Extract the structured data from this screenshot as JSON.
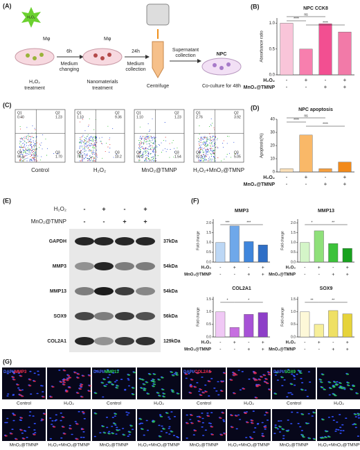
{
  "panel_labels": {
    "A": "(A)",
    "C": "(C)",
    "E": "(E)",
    "F": "(F)",
    "G": "(G)"
  },
  "schematic": {
    "star": "H₂O₂",
    "mphi1": "Mφ",
    "mphi2": "Mφ",
    "t1": "6h",
    "step1": [
      "Medium",
      "changing"
    ],
    "t2": "24h",
    "step2": [
      "Medium",
      "collection"
    ],
    "step3": [
      "Supernatant",
      "collection"
    ],
    "npc": "NPC",
    "cap1": [
      "H₂O₂",
      "treatment"
    ],
    "cap2": [
      "Nanomaterials",
      "treatment"
    ],
    "cap3": "Centrifuge",
    "cap4": "Co-culture for 48h"
  },
  "flow": {
    "quadrant_names": [
      "Q1",
      "Q2",
      "Q4",
      "Q3"
    ],
    "plots": [
      {
        "name": "Control",
        "quadrants": [
          "0.40",
          "1.23",
          "96.6",
          "1.70"
        ]
      },
      {
        "name": "H₂O₂",
        "quadrants": [
          "1.10",
          "9.36",
          "79.1",
          "10.2"
        ]
      },
      {
        "name": "MnO₂@TMNP",
        "quadrants": [
          "1.10",
          "1.23",
          "96.2",
          "1.54"
        ]
      },
      {
        "name": "H₂O₂+MnO₂@TMNP",
        "quadrants": [
          "2.76",
          "3.92",
          "91.1",
          "5.05"
        ]
      }
    ]
  },
  "blot": {
    "treatments": [
      {
        "name": "H₂O₂",
        "signs": [
          "-",
          "+",
          "-",
          "+"
        ]
      },
      {
        "name": "MnO₂@TMNP",
        "signs": [
          "-",
          "-",
          "+",
          "+"
        ]
      }
    ],
    "bands": [
      {
        "name": "GAPDH",
        "size": "37kDa"
      },
      {
        "name": "MMP3",
        "size": "54kDa"
      },
      {
        "name": "MMP13",
        "size": "54kDa"
      },
      {
        "name": "SOX9",
        "size": "56kDa"
      },
      {
        "name": "COL2A1",
        "size": "129kDa"
      }
    ]
  },
  "chart_data": [
    {
      "type": "bar",
      "panel": "(B)",
      "title": "NPC CCK8",
      "ylabel": "Absorbance ratio",
      "categories": [
        null,
        null,
        null,
        null
      ],
      "values": [
        1.0,
        0.5,
        0.99,
        0.83
      ],
      "colors": [
        "#f9c5d9",
        "#f77fae",
        "#f24f91",
        "#f27aa8"
      ],
      "ylim": [
        0,
        1.1
      ],
      "yticks": [
        {
          "value": 0,
          "label": "0.0"
        },
        {
          "value": 0.5,
          "label": "0.5"
        },
        {
          "value": 1,
          "label": "1.0"
        }
      ],
      "annotations": [
        "ns",
        "****",
        "****"
      ],
      "conditions": [
        {
          "name": "H₂O₂",
          "signs": [
            "-",
            "+",
            "-",
            "+"
          ]
        },
        {
          "name": "MnO₂@TMNP",
          "signs": [
            "-",
            "-",
            "+",
            "+"
          ]
        }
      ]
    },
    {
      "type": "bar",
      "panel": "(D)",
      "title": "NPC apoptosis",
      "ylabel": "Apoptosis(%)",
      "categories": [
        null,
        null,
        null,
        null
      ],
      "values": [
        2.5,
        28,
        2.5,
        7.5
      ],
      "colors": [
        "#fbe0b8",
        "#f9b868",
        "#f6a040",
        "#f28a1a"
      ],
      "ylim": [
        0,
        40
      ],
      "yticks": [
        0,
        10,
        20,
        30,
        40
      ],
      "annotations": [
        "ns",
        "****",
        "****"
      ],
      "conditions": [
        {
          "name": "H₂O₂",
          "signs": [
            "-",
            "+",
            "-",
            "+"
          ]
        },
        {
          "name": "MnO₂@TMNP",
          "signs": [
            "-",
            "-",
            "+",
            "+"
          ]
        }
      ]
    },
    {
      "type": "bar",
      "title": "MMP3",
      "ylabel": "Fold change",
      "categories": [
        null,
        null,
        null,
        null
      ],
      "values": [
        1.0,
        1.85,
        1.05,
        0.88
      ],
      "colors": [
        "#bcd7f5",
        "#6fa8ea",
        "#3f86dc",
        "#2f6fc6"
      ],
      "ylim": [
        0,
        2.2
      ],
      "yticks": [
        {
          "value": 0,
          "label": "0.0"
        },
        {
          "value": 0.5,
          "label": "0.5"
        },
        {
          "value": 1,
          "label": "1.0"
        },
        {
          "value": 1.5,
          "label": "1.5"
        },
        {
          "value": 2,
          "label": "2.0"
        }
      ],
      "annotations": [
        "***",
        "***"
      ],
      "conditions": [
        {
          "name": "H₂O₂",
          "signs": [
            "-",
            "+",
            "-",
            "+"
          ]
        },
        {
          "name": "MnO₂@TMNP",
          "signs": [
            "-",
            "-",
            "+",
            "+"
          ]
        }
      ]
    },
    {
      "type": "bar",
      "title": "MMP13",
      "ylabel": "Fold change",
      "categories": [
        null,
        null,
        null,
        null
      ],
      "values": [
        1.0,
        1.6,
        0.95,
        0.7
      ],
      "colors": [
        "#d4f5c8",
        "#8fe07a",
        "#3cc23a",
        "#18a21e"
      ],
      "ylim": [
        0,
        2.2
      ],
      "yticks": [
        {
          "value": 0,
          "label": "0.0"
        },
        {
          "value": 0.5,
          "label": "0.5"
        },
        {
          "value": 1,
          "label": "1.0"
        },
        {
          "value": 1.5,
          "label": "1.5"
        },
        {
          "value": 2,
          "label": "2.0"
        }
      ],
      "annotations": [
        "*",
        "**"
      ],
      "conditions": [
        {
          "name": "H₂O₂",
          "signs": [
            "-",
            "+",
            "-",
            "+"
          ]
        },
        {
          "name": "MnO₂@TMNP",
          "signs": [
            "-",
            "-",
            "+",
            "+"
          ]
        }
      ]
    },
    {
      "type": "bar",
      "title": "COL2A1",
      "ylabel": "Fold change",
      "categories": [
        null,
        null,
        null,
        null
      ],
      "values": [
        1.0,
        0.38,
        0.9,
        0.97
      ],
      "colors": [
        "#f0c8f5",
        "#c66fe0",
        "#a752d6",
        "#8e3fc8"
      ],
      "ylim": [
        0,
        1.6
      ],
      "yticks": [
        {
          "value": 0,
          "label": "0.0"
        },
        {
          "value": 0.5,
          "label": "0.5"
        },
        {
          "value": 1,
          "label": "1.0"
        },
        {
          "value": 1.5,
          "label": "1.5"
        }
      ],
      "annotations": [
        "*",
        "*"
      ],
      "conditions": [
        {
          "name": "H₂O₂",
          "signs": [
            "-",
            "+",
            "-",
            "+"
          ]
        },
        {
          "name": "MnO₂@TMNP",
          "signs": [
            "-",
            "-",
            "+",
            "+"
          ]
        }
      ]
    },
    {
      "type": "bar",
      "title": "SOX9",
      "ylabel": "Fold change",
      "categories": [
        null,
        null,
        null,
        null
      ],
      "values": [
        1.0,
        0.5,
        1.05,
        0.92
      ],
      "colors": [
        "#fdf8d8",
        "#f7ef9a",
        "#efe064",
        "#e6d33a"
      ],
      "ylim": [
        0,
        1.6
      ],
      "yticks": [
        {
          "value": 0,
          "label": "0.0"
        },
        {
          "value": 0.5,
          "label": "0.5"
        },
        {
          "value": 1,
          "label": "1.0"
        },
        {
          "value": 1.5,
          "label": "1.5"
        }
      ],
      "annotations": [
        "**",
        "**"
      ],
      "conditions": [
        {
          "name": "H₂O₂",
          "signs": [
            "-",
            "+",
            "-",
            "+"
          ]
        },
        {
          "name": "MnO₂@TMNP",
          "signs": [
            "-",
            "-",
            "+",
            "+"
          ]
        }
      ]
    }
  ],
  "imaging": {
    "stains": [
      {
        "dapi": "DAPI/",
        "marker": "MMP3"
      },
      {
        "dapi": "DAPI/",
        "marker": "MMP13"
      },
      {
        "dapi": "DAPI/",
        "marker": "COL2A1"
      },
      {
        "dapi": "DAPI/",
        "marker": "SOX9"
      }
    ],
    "row1": [
      "Control",
      "H₂O₂"
    ],
    "row2": [
      "MnO₂@TMNP",
      "H₂O₂+MnO₂@TMNP"
    ]
  }
}
